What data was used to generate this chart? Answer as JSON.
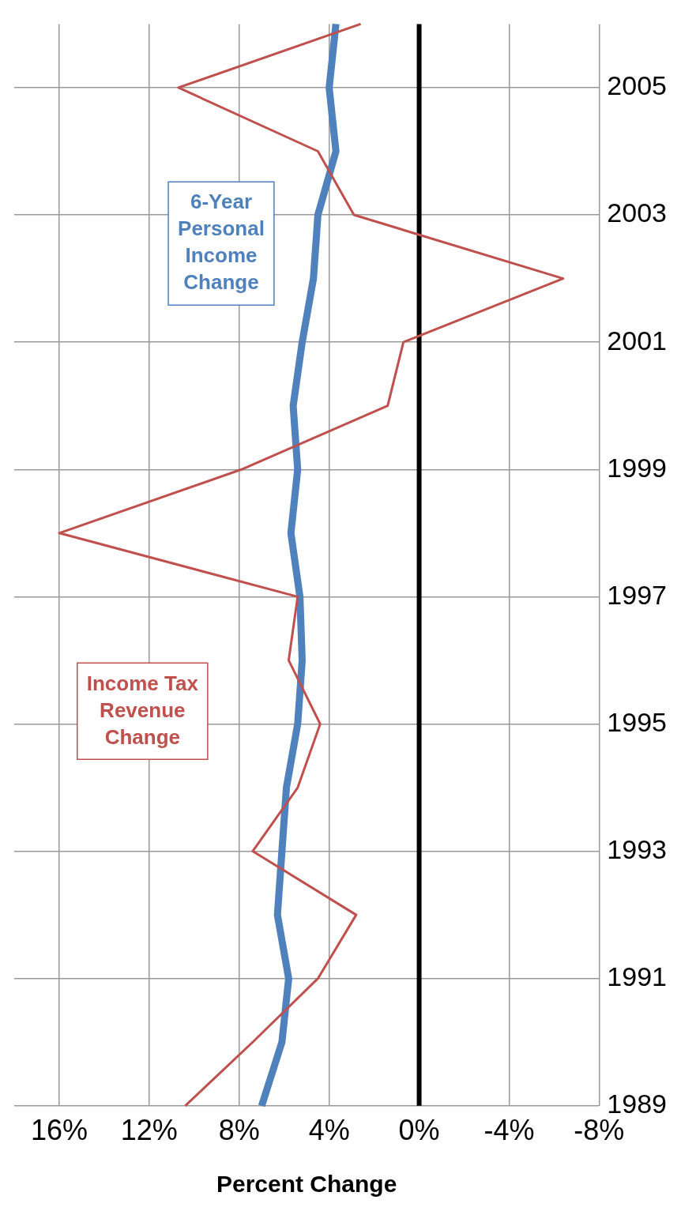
{
  "chart_data": {
    "type": "line",
    "orientation": "horizontal",
    "xlabel": "Percent Change",
    "categories": [
      null,
      "2005",
      null,
      "2003",
      null,
      "2001",
      null,
      "1999",
      null,
      "1997",
      null,
      "1995",
      null,
      "1993",
      null,
      "1991",
      null,
      "1989"
    ],
    "xlim": [
      18,
      -8
    ],
    "xticks": [
      {
        "value": 16,
        "label": "16%"
      },
      {
        "value": 12,
        "label": "12%"
      },
      {
        "value": 8,
        "label": "8%"
      },
      {
        "value": 4,
        "label": "4%"
      },
      {
        "value": 0,
        "label": "0%"
      },
      {
        "value": -4,
        "label": "-4%"
      },
      {
        "value": -8,
        "label": "-8%"
      }
    ],
    "grid": true,
    "marker": "none",
    "ref_lines": [
      {
        "axis": "x",
        "value": 0,
        "color": "#000000"
      }
    ],
    "series": [
      {
        "name": "Income Tax Revenue Change",
        "color": "#c0504d",
        "values": [
          2.6,
          10.7,
          4.5,
          2.9,
          -6.4,
          0.7,
          1.4,
          7.9,
          16.0,
          5.4,
          5.8,
          4.4,
          5.4,
          7.4,
          2.8,
          4.5,
          7.4,
          10.4
        ]
      },
      {
        "name": "6-Year Personal Income Change",
        "color": "#4f81bd",
        "values": [
          3.7,
          4.0,
          3.7,
          4.5,
          4.7,
          5.2,
          5.6,
          5.4,
          5.7,
          5.3,
          5.2,
          5.4,
          5.9,
          6.1,
          6.3,
          5.8,
          6.1,
          7.0
        ]
      }
    ]
  }
}
